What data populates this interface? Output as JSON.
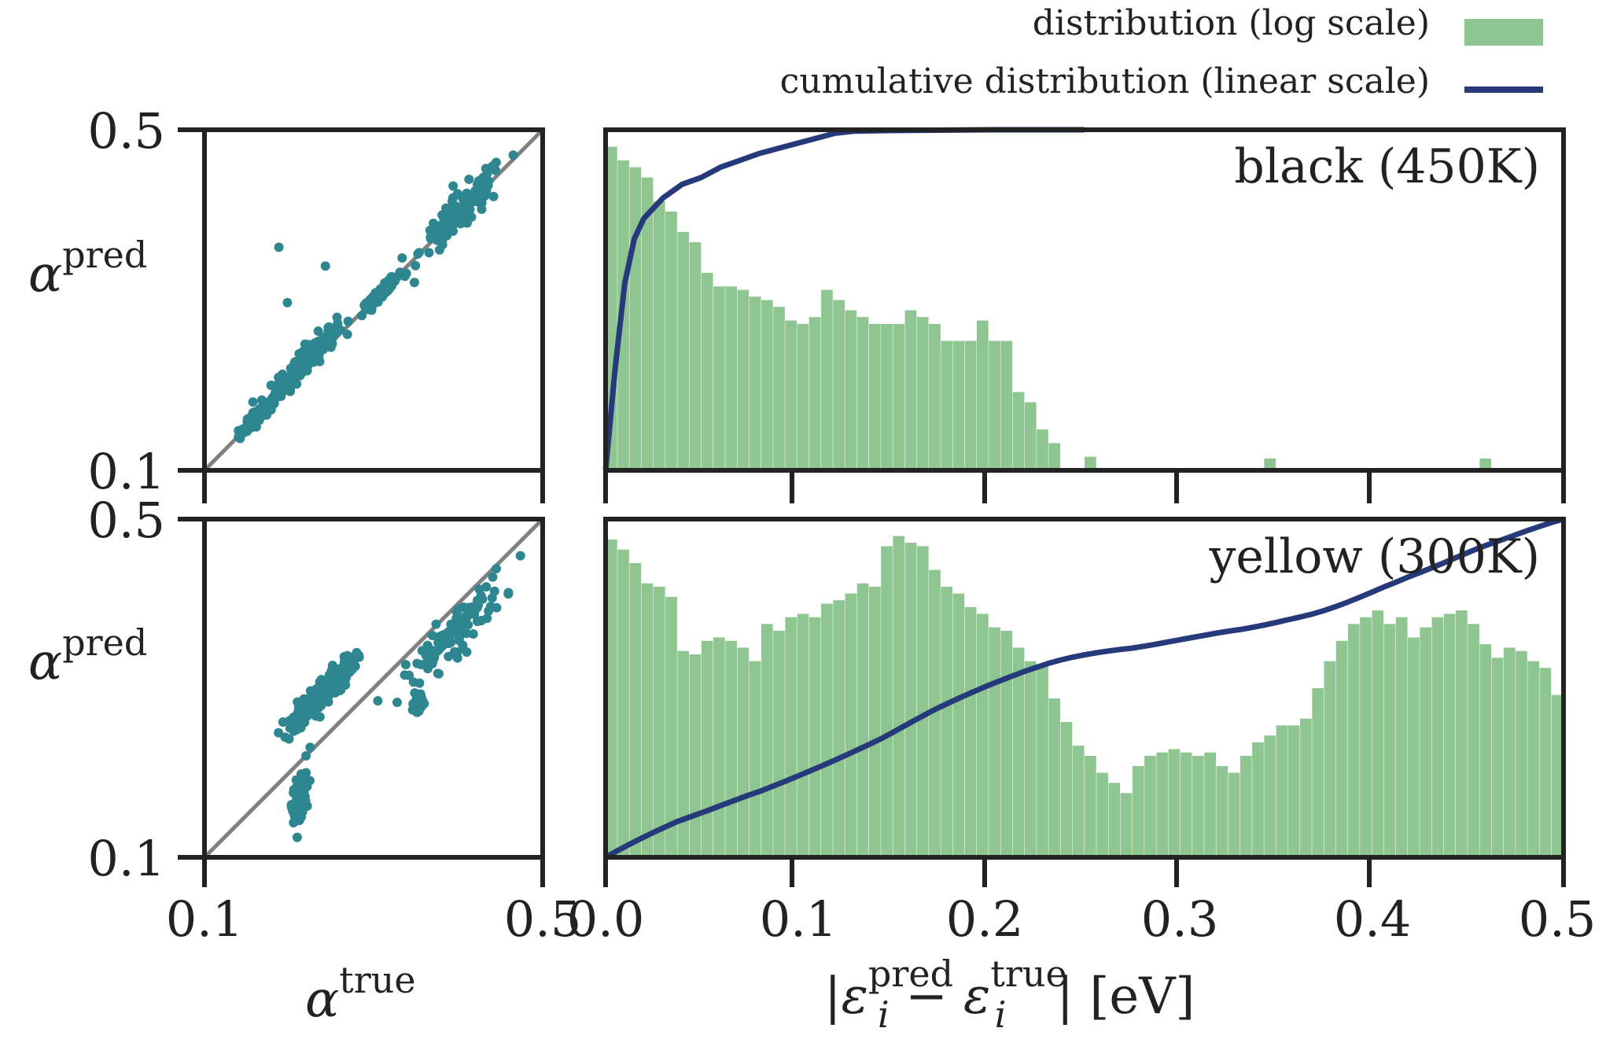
{
  "legend": {
    "distribution_label": "distribution (log scale)",
    "cumulative_label": "cumulative distribution (linear scale)"
  },
  "colors": {
    "hist": "#8fc591",
    "cumulative": "#26397a",
    "scatter": "#2e8790",
    "diagonal": "#808080"
  },
  "chart_data": [
    {
      "type": "scatter",
      "panel": "top-left",
      "xlabel": "α^true",
      "ylabel": "α^pred",
      "xlim": [
        0.1,
        0.5
      ],
      "ylim": [
        0.1,
        0.5
      ],
      "xticks": [
        "0.1",
        "0.5"
      ],
      "yticks": [
        "0.1",
        "0.5"
      ],
      "diagonal": true,
      "clusters": [
        {
          "cx": 0.165,
          "cy": 0.165,
          "sx": 0.012,
          "sy": 0.008,
          "n": 110
        },
        {
          "cx": 0.22,
          "cy": 0.23,
          "sx": 0.018,
          "sy": 0.017,
          "n": 150
        },
        {
          "cx": 0.31,
          "cy": 0.31,
          "sx": 0.012,
          "sy": 0.006,
          "n": 80
        },
        {
          "cx": 0.405,
          "cy": 0.405,
          "sx": 0.025,
          "sy": 0.024,
          "n": 130
        }
      ],
      "outliers": [
        [
          0.188,
          0.362
        ],
        [
          0.243,
          0.34
        ],
        [
          0.198,
          0.297
        ],
        [
          0.325,
          0.322
        ],
        [
          0.185,
          0.2
        ]
      ]
    },
    {
      "type": "bar",
      "panel": "top-right",
      "annotation": "black (450K)",
      "xlim": [
        0.0,
        0.5
      ],
      "bin_width": 0.00625,
      "hist_heights": [
        0.95,
        0.91,
        0.89,
        0.86,
        0.79,
        0.76,
        0.7,
        0.67,
        0.58,
        0.54,
        0.54,
        0.53,
        0.51,
        0.5,
        0.48,
        0.44,
        0.43,
        0.45,
        0.53,
        0.5,
        0.47,
        0.45,
        0.43,
        0.43,
        0.43,
        0.47,
        0.45,
        0.43,
        0.38,
        0.38,
        0.38,
        0.44,
        0.38,
        0.38,
        0.23,
        0.2,
        0.12,
        0.08,
        0.0,
        0.0,
        0.04,
        0,
        0,
        0,
        0,
        0,
        0,
        0,
        0,
        0,
        0,
        0,
        0,
        0,
        0,
        0.035,
        0,
        0,
        0,
        0,
        0,
        0,
        0,
        0,
        0,
        0,
        0,
        0,
        0,
        0,
        0,
        0,
        0,
        0.035,
        0,
        0,
        0,
        0,
        0,
        0
      ],
      "cumulative": [
        [
          0.0,
          0.0
        ],
        [
          0.002,
          0.12
        ],
        [
          0.005,
          0.3
        ],
        [
          0.01,
          0.55
        ],
        [
          0.015,
          0.68
        ],
        [
          0.02,
          0.74
        ],
        [
          0.03,
          0.8
        ],
        [
          0.04,
          0.84
        ],
        [
          0.05,
          0.86
        ],
        [
          0.06,
          0.89
        ],
        [
          0.07,
          0.91
        ],
        [
          0.08,
          0.93
        ],
        [
          0.09,
          0.945
        ],
        [
          0.1,
          0.96
        ],
        [
          0.11,
          0.975
        ],
        [
          0.12,
          0.99
        ],
        [
          0.13,
          0.996
        ],
        [
          0.15,
          0.998
        ],
        [
          0.2,
          1.0
        ],
        [
          0.25,
          1.0
        ]
      ]
    },
    {
      "type": "scatter",
      "panel": "bottom-left",
      "xlabel": "α^true",
      "ylabel": "α^pred",
      "xlim": [
        0.1,
        0.5
      ],
      "ylim": [
        0.1,
        0.5
      ],
      "xticks": [
        "0.1",
        "0.5"
      ],
      "yticks": [
        "0.1",
        "0.5"
      ],
      "diagonal": true,
      "clusters": [
        {
          "cx": 0.212,
          "cy": 0.17,
          "sx": 0.004,
          "sy": 0.022,
          "n": 150
        },
        {
          "cx": 0.24,
          "cy": 0.295,
          "sx": 0.018,
          "sy": 0.018,
          "n": 220
        },
        {
          "cx": 0.353,
          "cy": 0.28,
          "sx": 0.003,
          "sy": 0.01,
          "n": 50
        },
        {
          "cx": 0.395,
          "cy": 0.365,
          "sx": 0.03,
          "sy": 0.028,
          "n": 110
        }
      ],
      "outliers": [
        [
          0.22,
          0.22
        ],
        [
          0.2,
          0.24
        ],
        [
          0.225,
          0.23
        ]
      ]
    },
    {
      "type": "bar",
      "panel": "bottom-right",
      "annotation": "yellow (300K)",
      "xlabel": "|ε_i^pred − ε_i^true| [eV]",
      "xlim": [
        0.0,
        0.5
      ],
      "xticks": [
        "0.0",
        "0.1",
        "0.2",
        "0.3",
        "0.4",
        "0.5"
      ],
      "bin_width": 0.00625,
      "hist_heights": [
        0.94,
        0.91,
        0.87,
        0.81,
        0.8,
        0.77,
        0.61,
        0.6,
        0.64,
        0.65,
        0.64,
        0.62,
        0.58,
        0.69,
        0.67,
        0.71,
        0.72,
        0.71,
        0.75,
        0.76,
        0.78,
        0.81,
        0.8,
        0.92,
        0.95,
        0.93,
        0.92,
        0.85,
        0.8,
        0.78,
        0.74,
        0.72,
        0.68,
        0.67,
        0.62,
        0.58,
        0.57,
        0.47,
        0.4,
        0.33,
        0.3,
        0.25,
        0.22,
        0.19,
        0.27,
        0.3,
        0.31,
        0.32,
        0.31,
        0.3,
        0.31,
        0.27,
        0.25,
        0.3,
        0.34,
        0.36,
        0.39,
        0.39,
        0.41,
        0.5,
        0.58,
        0.64,
        0.69,
        0.71,
        0.73,
        0.69,
        0.71,
        0.65,
        0.68,
        0.71,
        0.72,
        0.73,
        0.69,
        0.63,
        0.59,
        0.62,
        0.61,
        0.58,
        0.56,
        0.48
      ]
    }
  ]
}
